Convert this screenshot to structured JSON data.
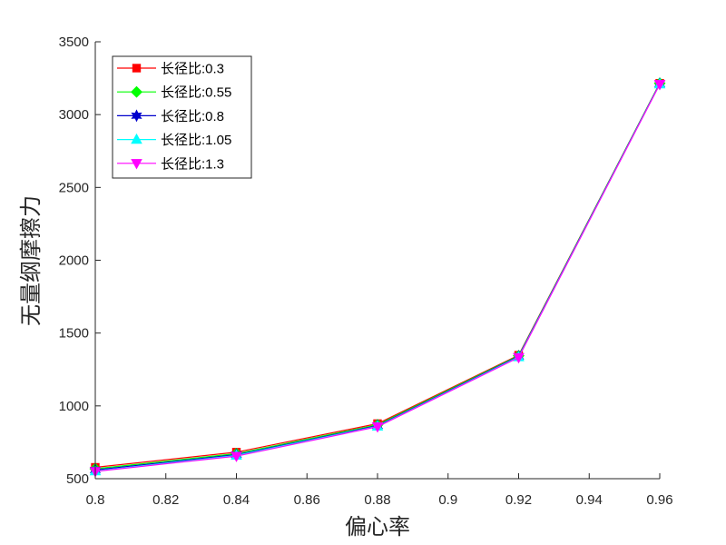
{
  "chart_data": {
    "type": "line",
    "xlabel": "偏心率",
    "ylabel": "无量纲摩擦力",
    "xlim": [
      0.8,
      0.96
    ],
    "ylim": [
      500,
      3500
    ],
    "x_ticks": [
      "0.8",
      "0.82",
      "0.84",
      "0.86",
      "0.88",
      "0.9",
      "0.92",
      "0.94",
      "0.96"
    ],
    "y_ticks": [
      "500",
      "1000",
      "1500",
      "2000",
      "2500",
      "3000",
      "3500"
    ],
    "grid": false,
    "legend_position": "top-left",
    "x": [
      0.8,
      0.84,
      0.88,
      0.92,
      0.96
    ],
    "series": [
      {
        "name": "长径比:0.3",
        "color": "#ff0000",
        "marker": "square",
        "values": [
          578,
          682,
          878,
          1348,
          3215
        ]
      },
      {
        "name": "长径比:0.55",
        "color": "#00ff00",
        "marker": "diamond",
        "values": [
          568,
          672,
          870,
          1344,
          3215
        ]
      },
      {
        "name": "长径比:0.8",
        "color": "#0000cd",
        "marker": "hexagram",
        "values": [
          560,
          665,
          864,
          1340,
          3212
        ]
      },
      {
        "name": "长径比:1.05",
        "color": "#00ffff",
        "marker": "triangle-up",
        "values": [
          553,
          660,
          860,
          1336,
          3210
        ]
      },
      {
        "name": "长径比:1.3",
        "color": "#ff00ff",
        "marker": "triangle-down",
        "values": [
          550,
          655,
          857,
          1332,
          3208
        ]
      }
    ]
  }
}
